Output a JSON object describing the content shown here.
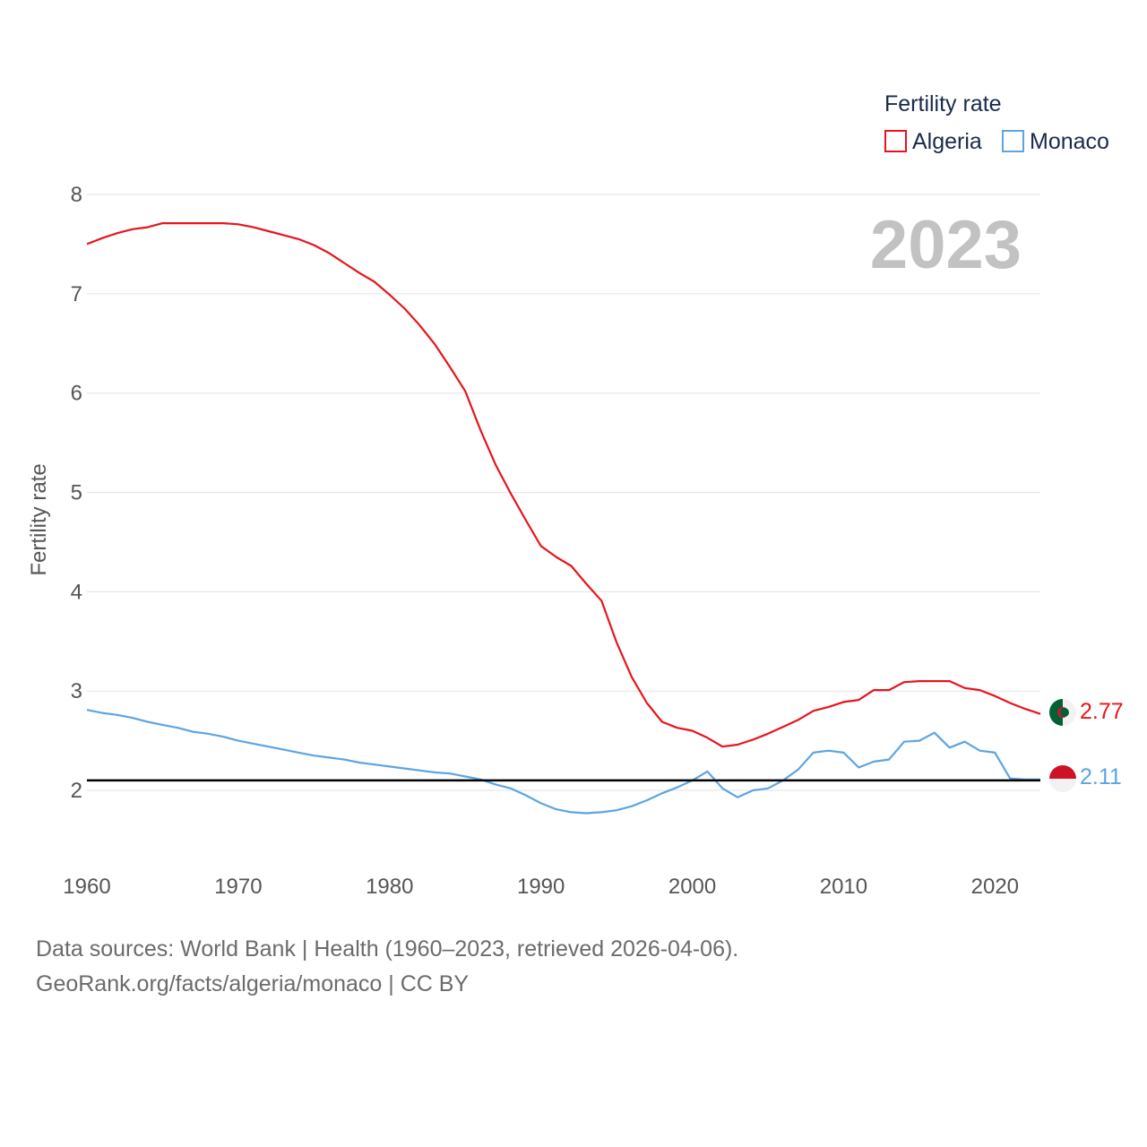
{
  "legend": {
    "title": "Fertility rate",
    "items": [
      {
        "name": "Algeria",
        "color": "#e8141b"
      },
      {
        "name": "Monaco",
        "color": "#5ba5e3"
      }
    ]
  },
  "year_label": "2023",
  "footer": {
    "line1": "Data sources: World Bank | Health (1960–2023, retrieved 2026-04-06).",
    "line2": "GeoRank.org/facts/algeria/monaco | CC BY"
  },
  "end_labels": {
    "algeria": "2.77",
    "monaco": "2.11"
  },
  "chart_data": {
    "type": "line",
    "title": "",
    "xlabel": "",
    "ylabel": "Fertility rate",
    "xlim": [
      1960,
      2023
    ],
    "ylim": [
      1.5,
      8
    ],
    "x_ticks": [
      1960,
      1970,
      1980,
      1990,
      2000,
      2010,
      2020
    ],
    "y_ticks": [
      2,
      3,
      4,
      5,
      6,
      7,
      8
    ],
    "reference_line": 2.1,
    "x": [
      1960,
      1961,
      1962,
      1963,
      1964,
      1965,
      1966,
      1967,
      1968,
      1969,
      1970,
      1971,
      1972,
      1973,
      1974,
      1975,
      1976,
      1977,
      1978,
      1979,
      1980,
      1981,
      1982,
      1983,
      1984,
      1985,
      1986,
      1987,
      1988,
      1989,
      1990,
      1991,
      1992,
      1993,
      1994,
      1995,
      1996,
      1997,
      1998,
      1999,
      2000,
      2001,
      2002,
      2003,
      2004,
      2005,
      2006,
      2007,
      2008,
      2009,
      2010,
      2011,
      2012,
      2013,
      2014,
      2015,
      2016,
      2017,
      2018,
      2019,
      2020,
      2021,
      2022,
      2023
    ],
    "series": [
      {
        "name": "Algeria",
        "color": "#e8141b",
        "values": [
          7.5,
          7.56,
          7.61,
          7.65,
          7.67,
          7.71,
          7.71,
          7.71,
          7.71,
          7.71,
          7.7,
          7.67,
          7.63,
          7.59,
          7.55,
          7.49,
          7.41,
          7.31,
          7.21,
          7.12,
          6.99,
          6.85,
          6.68,
          6.49,
          6.26,
          6.02,
          5.63,
          5.28,
          4.99,
          4.72,
          4.46,
          4.35,
          4.26,
          4.08,
          3.91,
          3.49,
          3.14,
          2.88,
          2.69,
          2.63,
          2.6,
          2.53,
          2.44,
          2.46,
          2.51,
          2.57,
          2.64,
          2.71,
          2.8,
          2.84,
          2.89,
          2.91,
          3.01,
          3.01,
          3.09,
          3.1,
          3.1,
          3.1,
          3.03,
          3.01,
          2.95,
          2.88,
          2.82,
          2.77
        ]
      },
      {
        "name": "Monaco",
        "color": "#5ba5e3",
        "values": [
          2.81,
          2.78,
          2.76,
          2.73,
          2.69,
          2.66,
          2.63,
          2.59,
          2.57,
          2.54,
          2.5,
          2.47,
          2.44,
          2.41,
          2.38,
          2.35,
          2.33,
          2.31,
          2.28,
          2.26,
          2.24,
          2.22,
          2.2,
          2.18,
          2.17,
          2.14,
          2.11,
          2.06,
          2.02,
          1.95,
          1.87,
          1.81,
          1.78,
          1.77,
          1.78,
          1.8,
          1.84,
          1.9,
          1.97,
          2.03,
          2.1,
          2.19,
          2.02,
          1.93,
          2.0,
          2.02,
          2.1,
          2.21,
          2.38,
          2.4,
          2.38,
          2.23,
          2.29,
          2.31,
          2.49,
          2.5,
          2.58,
          2.43,
          2.49,
          2.4,
          2.38,
          2.12,
          2.11,
          2.11
        ]
      }
    ]
  }
}
